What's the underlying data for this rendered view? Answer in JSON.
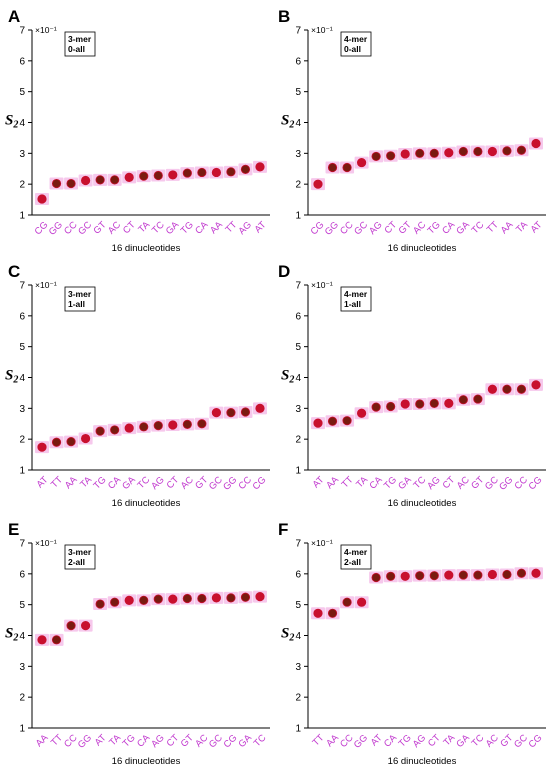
{
  "chart_data": [
    {
      "panel": "A",
      "type": "scatter",
      "title": "3-mer\n0-all",
      "xlabel": "16 dinucleotides",
      "ylabel": "S2",
      "y_multiplier": "×10⁻¹",
      "ylim": [
        1,
        7
      ],
      "yticks": [
        "1",
        "2",
        "3",
        "4",
        "5",
        "6",
        "7"
      ],
      "categories": [
        "CG",
        "GG",
        "CC",
        "GC",
        "GT",
        "AC",
        "CT",
        "TA",
        "TC",
        "GA",
        "TG",
        "CA",
        "AA",
        "TT",
        "AG",
        "AT"
      ],
      "values": [
        1.52,
        2.02,
        2.02,
        2.12,
        2.14,
        2.14,
        2.22,
        2.26,
        2.28,
        2.3,
        2.36,
        2.38,
        2.38,
        2.4,
        2.48,
        2.56
      ]
    },
    {
      "panel": "B",
      "type": "scatter",
      "title": "4-mer\n0-all",
      "xlabel": "16 dinucleotides",
      "ylabel": "S2",
      "y_multiplier": "×10⁻¹",
      "ylim": [
        1,
        7
      ],
      "yticks": [
        "1",
        "2",
        "3",
        "4",
        "5",
        "6",
        "7"
      ],
      "categories": [
        "CG",
        "GG",
        "CC",
        "GC",
        "AG",
        "CT",
        "GT",
        "AC",
        "TG",
        "CA",
        "GA",
        "TC",
        "TT",
        "AA",
        "TA",
        "AT"
      ],
      "values": [
        2.0,
        2.54,
        2.54,
        2.7,
        2.9,
        2.92,
        2.98,
        3.0,
        3.0,
        3.02,
        3.06,
        3.06,
        3.06,
        3.08,
        3.1,
        3.32
      ]
    },
    {
      "panel": "C",
      "type": "scatter",
      "title": "3-mer\n1-all",
      "xlabel": "16 dinucleotides",
      "ylabel": "S2",
      "y_multiplier": "×10⁻¹",
      "ylim": [
        1,
        7
      ],
      "yticks": [
        "1",
        "2",
        "3",
        "4",
        "5",
        "6",
        "7"
      ],
      "categories": [
        "AT",
        "TT",
        "AA",
        "TA",
        "TG",
        "CA",
        "GA",
        "TC",
        "AG",
        "CT",
        "AC",
        "GT",
        "GC",
        "GG",
        "CC",
        "CG"
      ],
      "values": [
        1.74,
        1.9,
        1.92,
        2.02,
        2.26,
        2.3,
        2.36,
        2.4,
        2.44,
        2.46,
        2.48,
        2.5,
        2.86,
        2.86,
        2.88,
        3.0
      ]
    },
    {
      "panel": "D",
      "type": "scatter",
      "title": "4-mer\n1-all",
      "xlabel": "16 dinucleotides",
      "ylabel": "S2",
      "y_multiplier": "×10⁻¹",
      "ylim": [
        1,
        7
      ],
      "yticks": [
        "1",
        "2",
        "3",
        "4",
        "5",
        "6",
        "7"
      ],
      "categories": [
        "AT",
        "AA",
        "TT",
        "TA",
        "CA",
        "TG",
        "GA",
        "TC",
        "AG",
        "CT",
        "AC",
        "GT",
        "GC",
        "GG",
        "CC",
        "CG"
      ],
      "values": [
        2.52,
        2.58,
        2.6,
        2.84,
        3.04,
        3.06,
        3.14,
        3.14,
        3.16,
        3.16,
        3.28,
        3.3,
        3.62,
        3.62,
        3.62,
        3.76
      ]
    },
    {
      "panel": "E",
      "type": "scatter",
      "title": "3-mer\n2-all",
      "xlabel": "16 dinucleotides",
      "ylabel": "S2",
      "y_multiplier": "×10⁻¹",
      "ylim": [
        1,
        7
      ],
      "yticks": [
        "1",
        "2",
        "3",
        "4",
        "5",
        "6",
        "7"
      ],
      "categories": [
        "AA",
        "TT",
        "CC",
        "GG",
        "AT",
        "TA",
        "TG",
        "CA",
        "AG",
        "CT",
        "GT",
        "AC",
        "GC",
        "CG",
        "GA",
        "TC"
      ],
      "values": [
        3.86,
        3.86,
        4.32,
        4.32,
        5.02,
        5.08,
        5.14,
        5.14,
        5.18,
        5.18,
        5.2,
        5.2,
        5.22,
        5.22,
        5.24,
        5.26
      ]
    },
    {
      "panel": "F",
      "type": "scatter",
      "title": "4-mer\n2-all",
      "xlabel": "16 dinucleotides",
      "ylabel": "S2",
      "y_multiplier": "×10⁻¹",
      "ylim": [
        1,
        7
      ],
      "yticks": [
        "1",
        "2",
        "3",
        "4",
        "5",
        "6",
        "7"
      ],
      "categories": [
        "TT",
        "AA",
        "CC",
        "GG",
        "AT",
        "CA",
        "TG",
        "AG",
        "CT",
        "TA",
        "GA",
        "TC",
        "AC",
        "GT",
        "GC",
        "CG"
      ],
      "values": [
        4.72,
        4.72,
        5.08,
        5.08,
        5.88,
        5.92,
        5.92,
        5.94,
        5.94,
        5.96,
        5.96,
        5.96,
        5.98,
        5.98,
        6.02,
        6.02
      ]
    }
  ],
  "colors": {
    "point_fill": "#c8102e",
    "point_dark": "#7a1a10",
    "highlight": "#f6c8ec",
    "category_text": "#c23ccf",
    "axis": "#000000"
  }
}
